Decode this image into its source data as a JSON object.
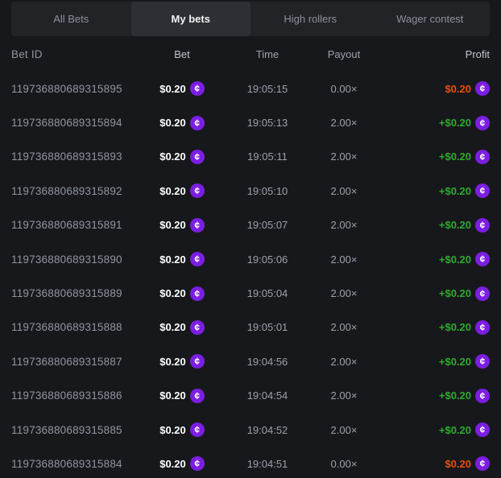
{
  "tabs": [
    {
      "label": "All Bets",
      "active": false
    },
    {
      "label": "My bets",
      "active": true
    },
    {
      "label": "High rollers",
      "active": false
    },
    {
      "label": "Wager contest",
      "active": false
    }
  ],
  "table": {
    "columns": {
      "bet_id": "Bet ID",
      "bet": "Bet",
      "time": "Time",
      "payout": "Payout",
      "profit": "Profit"
    },
    "rows": [
      {
        "bet_id": "119736880689315895",
        "bet": "$0.20",
        "time": "19:05:15",
        "payout": "0.00×",
        "profit": "$0.20",
        "profit_type": "loss"
      },
      {
        "bet_id": "119736880689315894",
        "bet": "$0.20",
        "time": "19:05:13",
        "payout": "2.00×",
        "profit": "+$0.20",
        "profit_type": "win"
      },
      {
        "bet_id": "119736880689315893",
        "bet": "$0.20",
        "time": "19:05:11",
        "payout": "2.00×",
        "profit": "+$0.20",
        "profit_type": "win"
      },
      {
        "bet_id": "119736880689315892",
        "bet": "$0.20",
        "time": "19:05:10",
        "payout": "2.00×",
        "profit": "+$0.20",
        "profit_type": "win"
      },
      {
        "bet_id": "119736880689315891",
        "bet": "$0.20",
        "time": "19:05:07",
        "payout": "2.00×",
        "profit": "+$0.20",
        "profit_type": "win"
      },
      {
        "bet_id": "119736880689315890",
        "bet": "$0.20",
        "time": "19:05:06",
        "payout": "2.00×",
        "profit": "+$0.20",
        "profit_type": "win"
      },
      {
        "bet_id": "119736880689315889",
        "bet": "$0.20",
        "time": "19:05:04",
        "payout": "2.00×",
        "profit": "+$0.20",
        "profit_type": "win"
      },
      {
        "bet_id": "119736880689315888",
        "bet": "$0.20",
        "time": "19:05:01",
        "payout": "2.00×",
        "profit": "+$0.20",
        "profit_type": "win"
      },
      {
        "bet_id": "119736880689315887",
        "bet": "$0.20",
        "time": "19:04:56",
        "payout": "2.00×",
        "profit": "+$0.20",
        "profit_type": "win"
      },
      {
        "bet_id": "119736880689315886",
        "bet": "$0.20",
        "time": "19:04:54",
        "payout": "2.00×",
        "profit": "+$0.20",
        "profit_type": "win"
      },
      {
        "bet_id": "119736880689315885",
        "bet": "$0.20",
        "time": "19:04:52",
        "payout": "2.00×",
        "profit": "+$0.20",
        "profit_type": "win"
      },
      {
        "bet_id": "119736880689315884",
        "bet": "$0.20",
        "time": "19:04:51",
        "payout": "0.00×",
        "profit": "$0.20",
        "profit_type": "loss"
      }
    ]
  },
  "icons": {
    "coin_symbol": "¢"
  },
  "colors": {
    "page_background": "#17181c",
    "tabbar_background": "#212327",
    "active_tab_background": "#2d2f34",
    "profit_win": "#2eab2e",
    "profit_loss": "#e94f0e",
    "coin_purple": "#7c1ee2"
  }
}
